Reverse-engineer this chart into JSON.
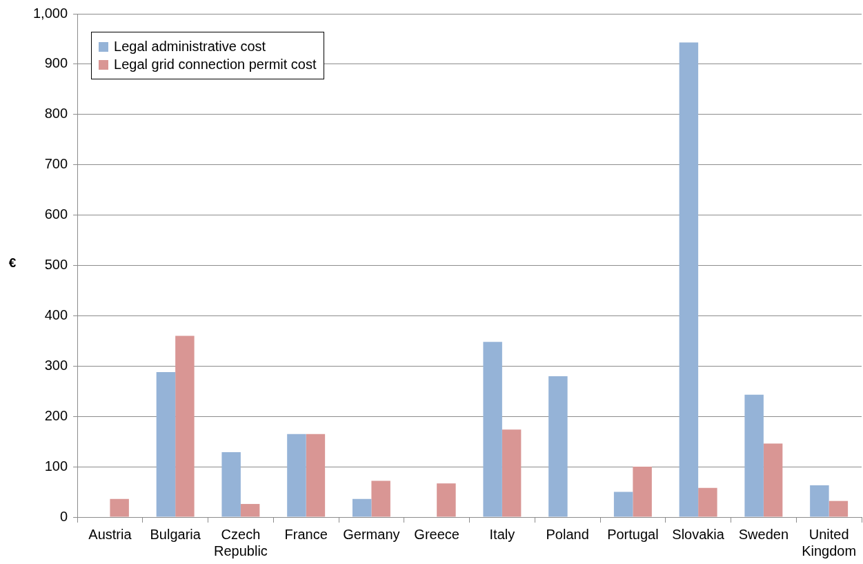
{
  "chart_data": {
    "type": "bar",
    "ylabel": "€",
    "categories": [
      "Austria",
      "Bulgaria",
      "Czech Republic",
      "France",
      "Germany",
      "Greece",
      "Italy",
      "Poland",
      "Portugal",
      "Slovakia",
      "Sweden",
      "United Kingdom"
    ],
    "series": [
      {
        "name": "Legal administrative cost",
        "color": "#95b3d7",
        "values": [
          null,
          288,
          129,
          165,
          36,
          null,
          348,
          280,
          50,
          943,
          243,
          63
        ]
      },
      {
        "name": "Legal grid connection permit cost",
        "color": "#d99694",
        "values": [
          36,
          360,
          26,
          165,
          72,
          67,
          174,
          null,
          100,
          58,
          146,
          32
        ]
      }
    ],
    "ylim": [
      0,
      1000
    ],
    "yticks": [
      0,
      100,
      200,
      300,
      400,
      500,
      600,
      700,
      800,
      900,
      {
        "value": 1000,
        "label": "1,000"
      }
    ],
    "grid": "y",
    "legend": "top left"
  }
}
